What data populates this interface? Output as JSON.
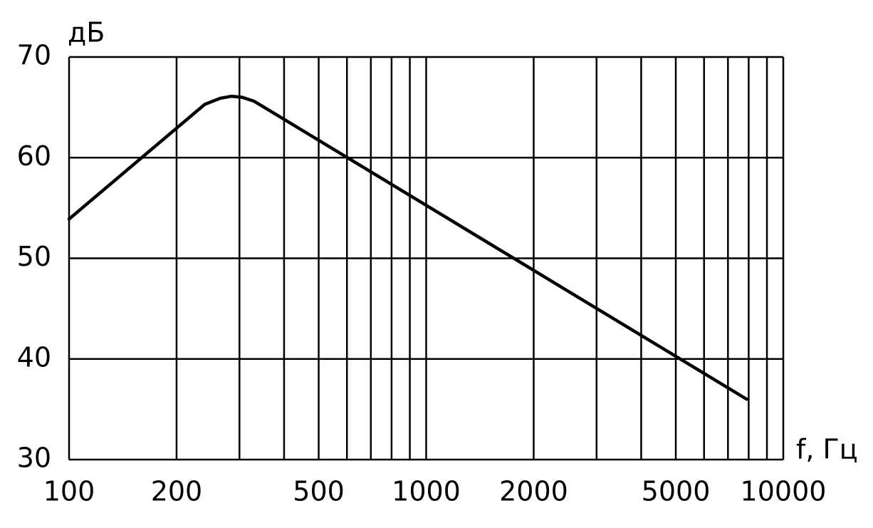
{
  "chart_data": {
    "type": "line",
    "y_label": "дБ",
    "x_label": "f, Гц",
    "x": [
      100,
      240,
      265,
      285,
      305,
      330,
      7900
    ],
    "series": [
      {
        "color": "#000000",
        "values": [
          53.9,
          65.3,
          65.9,
          66.1,
          66.0,
          65.6,
          36
        ]
      }
    ],
    "xlim": [
      100,
      10000
    ],
    "log_x": true,
    "xticks": [
      100,
      200,
      500,
      1000,
      2000,
      5000,
      10000
    ],
    "x_minor_ticks": [
      300,
      400,
      600,
      700,
      800,
      900,
      3000,
      4000,
      6000,
      7000,
      8000,
      9000
    ],
    "ylim": [
      30,
      70
    ],
    "yticks": [
      30,
      40,
      50,
      60,
      70
    ],
    "grid": true
  }
}
